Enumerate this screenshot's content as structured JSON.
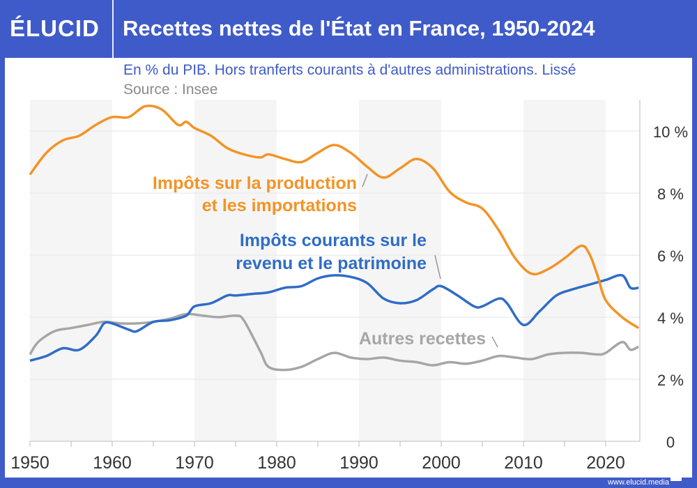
{
  "header": {
    "logo": "ÉLUCID",
    "title": "Recettes nettes de l'État en France, 1950-2024"
  },
  "subtitle": "En % du PIB. Hors tranferts courants à d'autres administrations. Lissé",
  "source": "Source : Insee",
  "footer": "www.elucid.media",
  "colors": {
    "brand": "#3f5bc9",
    "production": "#f39325",
    "revenu": "#2f6cc6",
    "autres": "#a6a6a6"
  },
  "chart_data": {
    "type": "line",
    "xlim": [
      1950,
      2024
    ],
    "ylim": [
      0,
      11
    ],
    "x_ticks": [
      "1950",
      "1960",
      "1970",
      "1980",
      "1990",
      "2000",
      "2010",
      "2020"
    ],
    "y_ticks": [
      "0",
      "2 %",
      "4 %",
      "6 %",
      "8 %",
      "10 %"
    ],
    "y_axis_side": "right",
    "shaded_decades": [
      [
        1950,
        1960
      ],
      [
        1970,
        1980
      ],
      [
        1990,
        2000
      ],
      [
        2010,
        2020
      ]
    ],
    "series": [
      {
        "name": "Impôts sur la production et les importations",
        "label_lines": [
          "Impôts sur la production",
          "et les importations"
        ],
        "color": "#f39325",
        "points": [
          [
            1950,
            8.6
          ],
          [
            1952,
            9.3
          ],
          [
            1954,
            9.7
          ],
          [
            1956,
            9.85
          ],
          [
            1958,
            10.2
          ],
          [
            1960,
            10.45
          ],
          [
            1962,
            10.45
          ],
          [
            1964,
            10.8
          ],
          [
            1966,
            10.7
          ],
          [
            1968,
            10.2
          ],
          [
            1969,
            10.3
          ],
          [
            1970,
            10.1
          ],
          [
            1972,
            9.85
          ],
          [
            1974,
            9.45
          ],
          [
            1976,
            9.25
          ],
          [
            1978,
            9.15
          ],
          [
            1979,
            9.25
          ],
          [
            1981,
            9.1
          ],
          [
            1983,
            9.0
          ],
          [
            1985,
            9.3
          ],
          [
            1987,
            9.55
          ],
          [
            1989,
            9.3
          ],
          [
            1991,
            8.85
          ],
          [
            1993,
            8.5
          ],
          [
            1995,
            8.8
          ],
          [
            1997,
            9.1
          ],
          [
            1999,
            8.8
          ],
          [
            2001,
            8.05
          ],
          [
            2003,
            7.7
          ],
          [
            2005,
            7.5
          ],
          [
            2007,
            6.8
          ],
          [
            2009,
            5.9
          ],
          [
            2011,
            5.4
          ],
          [
            2013,
            5.55
          ],
          [
            2015,
            5.9
          ],
          [
            2017,
            6.3
          ],
          [
            2018,
            6.05
          ],
          [
            2019,
            5.35
          ],
          [
            2020,
            4.55
          ],
          [
            2022,
            4.0
          ],
          [
            2024,
            3.65
          ]
        ]
      },
      {
        "name": "Impôts courants sur le revenu et le patrimoine",
        "label_lines": [
          "Impôts courants sur le",
          "revenu et le patrimoine"
        ],
        "color": "#2f6cc6",
        "points": [
          [
            1950,
            2.6
          ],
          [
            1952,
            2.75
          ],
          [
            1954,
            3.0
          ],
          [
            1956,
            2.95
          ],
          [
            1958,
            3.4
          ],
          [
            1959,
            3.8
          ],
          [
            1960,
            3.8
          ],
          [
            1962,
            3.6
          ],
          [
            1963,
            3.55
          ],
          [
            1965,
            3.85
          ],
          [
            1967,
            3.9
          ],
          [
            1969,
            4.05
          ],
          [
            1970,
            4.35
          ],
          [
            1972,
            4.45
          ],
          [
            1974,
            4.7
          ],
          [
            1975,
            4.7
          ],
          [
            1977,
            4.75
          ],
          [
            1979,
            4.8
          ],
          [
            1981,
            4.95
          ],
          [
            1983,
            5.0
          ],
          [
            1985,
            5.25
          ],
          [
            1987,
            5.35
          ],
          [
            1989,
            5.3
          ],
          [
            1991,
            5.1
          ],
          [
            1993,
            4.6
          ],
          [
            1995,
            4.45
          ],
          [
            1997,
            4.55
          ],
          [
            1999,
            4.9
          ],
          [
            2000,
            5.0
          ],
          [
            2002,
            4.7
          ],
          [
            2004,
            4.35
          ],
          [
            2005,
            4.35
          ],
          [
            2007,
            4.6
          ],
          [
            2008,
            4.45
          ],
          [
            2010,
            3.75
          ],
          [
            2012,
            4.2
          ],
          [
            2014,
            4.7
          ],
          [
            2016,
            4.9
          ],
          [
            2018,
            5.05
          ],
          [
            2020,
            5.2
          ],
          [
            2022,
            5.35
          ],
          [
            2023,
            4.95
          ],
          [
            2024,
            4.95
          ]
        ]
      },
      {
        "name": "Autres recettes",
        "label_lines": [
          "Autres recettes"
        ],
        "color": "#a6a6a6",
        "points": [
          [
            1950,
            2.8
          ],
          [
            1951,
            3.2
          ],
          [
            1953,
            3.55
          ],
          [
            1955,
            3.65
          ],
          [
            1957,
            3.75
          ],
          [
            1959,
            3.85
          ],
          [
            1961,
            3.8
          ],
          [
            1963,
            3.8
          ],
          [
            1965,
            3.85
          ],
          [
            1967,
            3.95
          ],
          [
            1969,
            4.1
          ],
          [
            1971,
            4.05
          ],
          [
            1973,
            4.0
          ],
          [
            1975,
            4.05
          ],
          [
            1976,
            3.9
          ],
          [
            1978,
            2.9
          ],
          [
            1979,
            2.4
          ],
          [
            1981,
            2.3
          ],
          [
            1983,
            2.4
          ],
          [
            1985,
            2.65
          ],
          [
            1987,
            2.85
          ],
          [
            1989,
            2.7
          ],
          [
            1991,
            2.65
          ],
          [
            1993,
            2.7
          ],
          [
            1995,
            2.6
          ],
          [
            1997,
            2.55
          ],
          [
            1999,
            2.45
          ],
          [
            2001,
            2.55
          ],
          [
            2003,
            2.5
          ],
          [
            2005,
            2.6
          ],
          [
            2007,
            2.75
          ],
          [
            2009,
            2.7
          ],
          [
            2011,
            2.65
          ],
          [
            2013,
            2.8
          ],
          [
            2015,
            2.85
          ],
          [
            2017,
            2.85
          ],
          [
            2019,
            2.8
          ],
          [
            2020,
            2.85
          ],
          [
            2022,
            3.2
          ],
          [
            2023,
            2.95
          ],
          [
            2024,
            3.05
          ]
        ]
      }
    ]
  }
}
